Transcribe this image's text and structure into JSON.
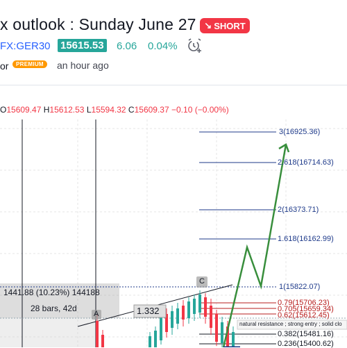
{
  "header": {
    "title": "x outlook : Sunday June 27",
    "short_label": "SHORT",
    "symbol": "FX:GER30",
    "price": "15615.53",
    "change": "6.06",
    "change_pct": "0.04%",
    "author": "or",
    "premium_label": "PREMIUM",
    "time_ago": "an hour ago"
  },
  "ohlc": {
    "o_label": "O",
    "o": "15609.47",
    "h_label": "H",
    "h": "15612.53",
    "l_label": "L",
    "l": "15594.32",
    "c_label": "C",
    "c": "15609.37",
    "change": "−0.10 (−0.00%)"
  },
  "measure": {
    "range": "1441.88 (10.23%) 144188",
    "bars": "28 bars, 42d"
  },
  "ratio_label": "1.332",
  "point_labels": {
    "a": "A",
    "c": "C"
  },
  "fib_levels": [
    {
      "label": "3(16925.36)",
      "color": "#1e3a8a"
    },
    {
      "label": "2.618(16714.63)",
      "color": "#1e3a8a"
    },
    {
      "label": "2(16373.71)",
      "color": "#1e3a8a"
    },
    {
      "label": "1.618(16162.99)",
      "color": "#1e3a8a"
    },
    {
      "label": "1(15822.07)",
      "color": "#1e3a8a"
    },
    {
      "label": "0.79(15706.23)",
      "color": "#b71c1c"
    },
    {
      "label": "0.705(15659.34)",
      "color": "#b71c1c"
    },
    {
      "label": "0.62(15612.45)",
      "color": "#b71c1c"
    },
    {
      "label": "0.382(15481.16)",
      "color": "#131722"
    },
    {
      "label": "0.236(15400.62)",
      "color": "#131722"
    }
  ],
  "resistance_note": "natural resistance ; strong entry ; solid clo",
  "colors": {
    "up": "#26a69a",
    "down": "#f23645",
    "projection": "#388e3c",
    "fib_blue": "#1e3a8a",
    "fib_red": "#b71c1c",
    "accent": "#2962ff"
  },
  "icons": {
    "alarm": "alarm-clock-plus-icon",
    "short_arrow": "arrow-down-right-icon"
  }
}
